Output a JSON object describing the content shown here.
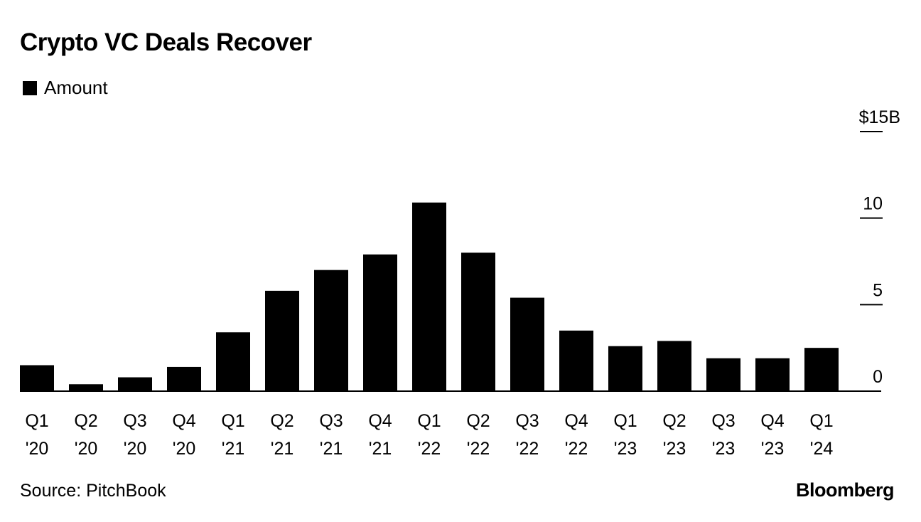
{
  "header": {
    "title": "Crypto VC Deals Recover"
  },
  "legend": {
    "label": "Amount",
    "color": "#000000"
  },
  "footer": {
    "source": "Source: PitchBook",
    "brand": "Bloomberg"
  },
  "chart_data": {
    "type": "bar",
    "title": "Crypto VC Deals Recover",
    "categories": [
      "Q1 '20",
      "Q2 '20",
      "Q3 '20",
      "Q4 '20",
      "Q1 '21",
      "Q2 '21",
      "Q3 '21",
      "Q4 '21",
      "Q1 '22",
      "Q2 '22",
      "Q3 '22",
      "Q4 '22",
      "Q1 '23",
      "Q2 '23",
      "Q3 '23",
      "Q4 '23",
      "Q1 '24"
    ],
    "category_lines": [
      [
        "Q1",
        "'20"
      ],
      [
        "Q2",
        "'20"
      ],
      [
        "Q3",
        "'20"
      ],
      [
        "Q4",
        "'20"
      ],
      [
        "Q1",
        "'21"
      ],
      [
        "Q2",
        "'21"
      ],
      [
        "Q3",
        "'21"
      ],
      [
        "Q4",
        "'21"
      ],
      [
        "Q1",
        "'22"
      ],
      [
        "Q2",
        "'22"
      ],
      [
        "Q3",
        "'22"
      ],
      [
        "Q4",
        "'22"
      ],
      [
        "Q1",
        "'23"
      ],
      [
        "Q2",
        "'23"
      ],
      [
        "Q3",
        "'23"
      ],
      [
        "Q4",
        "'23"
      ],
      [
        "Q1",
        "'24"
      ]
    ],
    "series": [
      {
        "name": "Amount",
        "color": "#000000",
        "values": [
          1.5,
          0.4,
          0.8,
          1.4,
          3.4,
          5.8,
          7.0,
          7.9,
          10.9,
          8.0,
          5.4,
          3.5,
          2.6,
          2.9,
          1.9,
          1.9,
          2.5
        ]
      }
    ],
    "ylim": [
      0,
      15
    ],
    "yticks": [
      {
        "value": 15,
        "label": "$15B"
      },
      {
        "value": 10,
        "label": "10"
      },
      {
        "value": 5,
        "label": "5"
      },
      {
        "value": 0,
        "label": "0"
      }
    ],
    "y_axis_position": "right",
    "grid": false,
    "legend_position": "top-left"
  }
}
